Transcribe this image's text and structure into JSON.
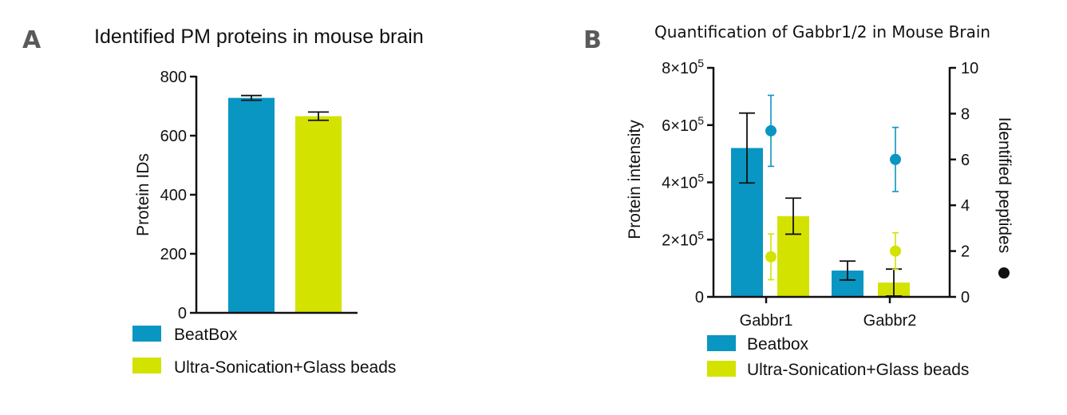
{
  "panel_a": {
    "letter": "A",
    "legend": [
      "BeatBox",
      "Ultra-Sonication+Glass beads"
    ]
  },
  "panel_b": {
    "letter": "B",
    "legend": [
      "Beatbox",
      "Ultra-Sonication+Glass beads"
    ],
    "y_ticks": [
      "0",
      "2×10",
      "4×10",
      "6×10",
      "8×10"
    ],
    "y_tick_exponent": "5",
    "y2_ticks": [
      "0",
      "2",
      "4",
      "6",
      "8",
      "10"
    ]
  },
  "chart_data": [
    {
      "type": "bar",
      "title": "Identified PM proteins in mouse brain",
      "xlabel": "",
      "ylabel": "Protein IDs",
      "ylim": [
        0,
        800
      ],
      "yticks": [
        0,
        200,
        400,
        600,
        800
      ],
      "series": [
        {
          "name": "BeatBox",
          "color": "#0a96c2",
          "values": [
            728
          ],
          "error": [
            8
          ]
        },
        {
          "name": "Ultra-Sonication+Glass beads",
          "color": "#d4e200",
          "values": [
            666
          ],
          "error": [
            14
          ]
        }
      ],
      "legend_position": "bottom"
    },
    {
      "type": "bar",
      "title": "Quantification of Gabbr1/2 in Mouse Brain",
      "categories": [
        "Gabbr1",
        "Gabbr2"
      ],
      "ylabel": "Protein intensity",
      "ylim": [
        0,
        800000
      ],
      "y2label": "Identified peptides",
      "y2lim": [
        0,
        10
      ],
      "series": [
        {
          "name": "Beatbox",
          "color": "#0a96c2",
          "axis": "left",
          "values": [
            520000,
            92000
          ],
          "error": [
            122000,
            33000
          ]
        },
        {
          "name": "Ultra-Sonication+Glass beads",
          "color": "#d4e200",
          "axis": "left",
          "values": [
            282000,
            50000
          ],
          "error": [
            63000,
            47000
          ]
        }
      ],
      "points": [
        {
          "series_color": "#0a96c2",
          "axis": "right",
          "values": [
            7.25,
            6.0
          ],
          "error": [
            1.55,
            1.4
          ]
        },
        {
          "series_color": "#d4e200",
          "axis": "right",
          "values": [
            1.75,
            2.0
          ],
          "error": [
            1.0,
            0.8
          ]
        }
      ],
      "legend_position": "bottom"
    }
  ]
}
